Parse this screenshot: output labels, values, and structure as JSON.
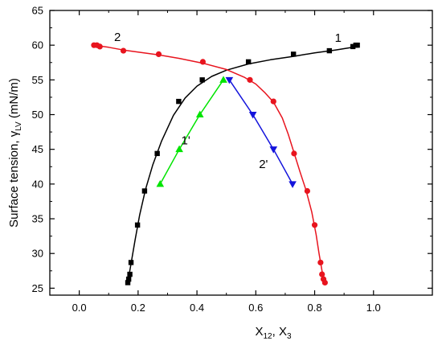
{
  "chart_data": {
    "type": "scatter",
    "title": "",
    "xlabel": "X",
    "xlabel_sub1": "12",
    "xlabel_sep": ", X",
    "xlabel_sub2": "3",
    "ylabel": "Surface tension, γ",
    "ylabel_sub": "LV",
    "ylabel_unit": " (mN/m)",
    "xlim": [
      -0.1,
      1.2
    ],
    "ylim": [
      24,
      65
    ],
    "xticks": [
      "0.0",
      "0.2",
      "0.4",
      "0.6",
      "0.8",
      "1.0"
    ],
    "xtick_values": [
      0.0,
      0.2,
      0.4,
      0.6,
      0.8,
      1.0
    ],
    "yticks": [
      "25",
      "30",
      "35",
      "40",
      "45",
      "50",
      "55",
      "60",
      "65"
    ],
    "ytick_values": [
      25,
      30,
      35,
      40,
      45,
      50,
      55,
      60,
      65
    ],
    "grid": false,
    "series": [
      {
        "name": "1",
        "color": "#000000",
        "marker": "square",
        "points": [
          [
            0.165,
            25.8
          ],
          [
            0.168,
            26.3
          ],
          [
            0.172,
            27.0
          ],
          [
            0.176,
            28.7
          ],
          [
            0.198,
            34.1
          ],
          [
            0.222,
            39.0
          ],
          [
            0.265,
            44.4
          ],
          [
            0.338,
            51.9
          ],
          [
            0.418,
            55.0
          ],
          [
            0.575,
            57.6
          ],
          [
            0.728,
            58.7
          ],
          [
            0.85,
            59.2
          ],
          [
            0.93,
            59.8
          ],
          [
            0.94,
            60.0
          ],
          [
            0.945,
            60.0
          ]
        ],
        "curve": [
          [
            0.165,
            25.8
          ],
          [
            0.175,
            28.3
          ],
          [
            0.19,
            32.0
          ],
          [
            0.205,
            35.5
          ],
          [
            0.225,
            39.2
          ],
          [
            0.25,
            42.8
          ],
          [
            0.28,
            46.2
          ],
          [
            0.32,
            49.9
          ],
          [
            0.36,
            52.4
          ],
          [
            0.4,
            54.1
          ],
          [
            0.45,
            55.5
          ],
          [
            0.5,
            56.4
          ],
          [
            0.575,
            57.3
          ],
          [
            0.65,
            57.9
          ],
          [
            0.73,
            58.4
          ],
          [
            0.8,
            58.9
          ],
          [
            0.87,
            59.3
          ],
          [
            0.93,
            59.7
          ],
          [
            0.95,
            60.0
          ]
        ]
      },
      {
        "name": "2",
        "color": "#e8141e",
        "marker": "circle",
        "points": [
          [
            0.05,
            60.0
          ],
          [
            0.06,
            60.0
          ],
          [
            0.07,
            59.8
          ],
          [
            0.15,
            59.2
          ],
          [
            0.27,
            58.7
          ],
          [
            0.42,
            57.6
          ],
          [
            0.58,
            55.0
          ],
          [
            0.66,
            51.9
          ],
          [
            0.73,
            44.4
          ],
          [
            0.775,
            39.0
          ],
          [
            0.8,
            34.1
          ],
          [
            0.82,
            28.7
          ],
          [
            0.825,
            27.0
          ],
          [
            0.83,
            26.3
          ],
          [
            0.835,
            25.8
          ]
        ],
        "curve": [
          [
            0.05,
            60.0
          ],
          [
            0.1,
            59.7
          ],
          [
            0.15,
            59.3
          ],
          [
            0.2,
            59.0
          ],
          [
            0.27,
            58.6
          ],
          [
            0.34,
            58.1
          ],
          [
            0.42,
            57.4
          ],
          [
            0.5,
            56.5
          ],
          [
            0.56,
            55.4
          ],
          [
            0.6,
            54.4
          ],
          [
            0.63,
            53.2
          ],
          [
            0.66,
            51.8
          ],
          [
            0.69,
            49.5
          ],
          [
            0.71,
            47.2
          ],
          [
            0.73,
            44.5
          ],
          [
            0.75,
            41.8
          ],
          [
            0.77,
            39.2
          ],
          [
            0.79,
            36.0
          ],
          [
            0.805,
            32.7
          ],
          [
            0.815,
            30.0
          ],
          [
            0.825,
            27.5
          ],
          [
            0.835,
            25.8
          ]
        ]
      },
      {
        "name": "1'",
        "color": "#00e400",
        "marker": "triangle-up",
        "points": [
          [
            0.275,
            40.0
          ],
          [
            0.34,
            45.0
          ],
          [
            0.41,
            50.0
          ],
          [
            0.49,
            55.0
          ]
        ],
        "line": true
      },
      {
        "name": "2'",
        "color": "#1414dc",
        "marker": "triangle-down",
        "points": [
          [
            0.51,
            55.0
          ],
          [
            0.59,
            50.0
          ],
          [
            0.66,
            45.0
          ],
          [
            0.725,
            40.0
          ]
        ],
        "line": true
      }
    ],
    "series_labels": [
      {
        "text": "1",
        "x": 0.88,
        "y": 60.5
      },
      {
        "text": "2",
        "x": 0.13,
        "y": 60.6
      },
      {
        "text": "1'",
        "x": 0.362,
        "y": 45.7
      },
      {
        "text": "2'",
        "x": 0.626,
        "y": 42.3
      }
    ]
  }
}
